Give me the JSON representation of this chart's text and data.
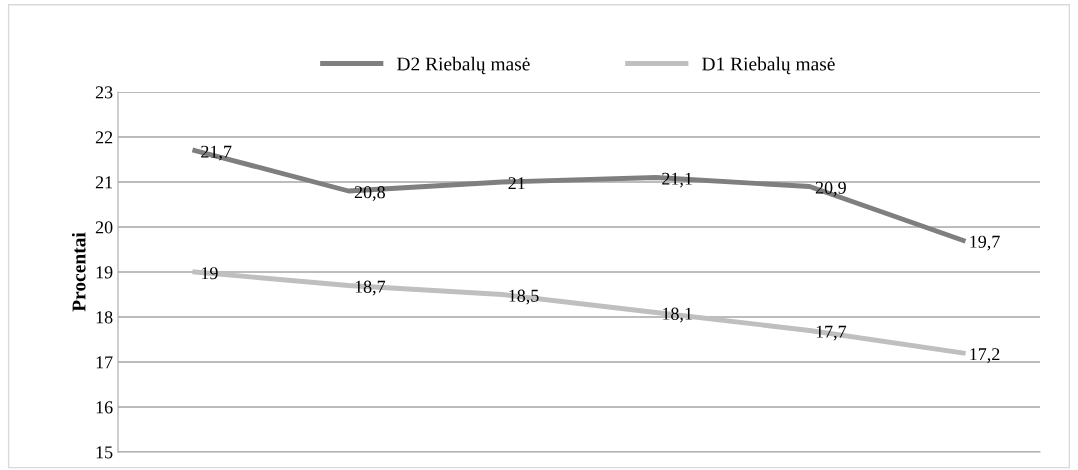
{
  "chart_data": {
    "type": "line",
    "ylabel": "Procentai",
    "categories": [
      null,
      null,
      null,
      null,
      null,
      null
    ],
    "series": [
      {
        "name": "D2 Riebalų masė",
        "color": "#7f7f7f",
        "values": [
          21.7,
          20.8,
          21.0,
          21.1,
          20.9,
          19.7
        ],
        "value_labels": [
          "21,7",
          "20,8",
          "21",
          "21,1",
          "20,9",
          "19,7"
        ]
      },
      {
        "name": "D1 Riebalų masė",
        "color": "#bfbfbf",
        "values": [
          19.0,
          18.7,
          18.5,
          18.1,
          17.7,
          17.2
        ],
        "value_labels": [
          "19",
          "18,7",
          "18,5",
          "18,1",
          "17,7",
          "17,2"
        ]
      }
    ],
    "ylim": [
      15,
      23
    ],
    "yticks": [
      15,
      16,
      17,
      18,
      19,
      20,
      21,
      22,
      23
    ],
    "grid": "y",
    "legend": "top",
    "marker": "none",
    "line_style": "solid"
  }
}
